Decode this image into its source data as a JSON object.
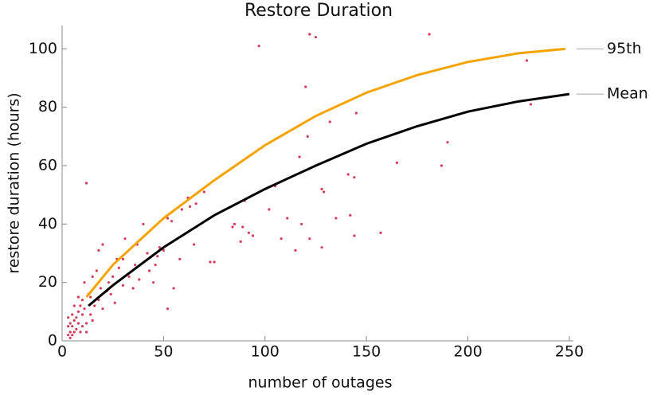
{
  "chart_data": {
    "type": "scatter",
    "title": "Restore Duration",
    "x_label": "number of outages",
    "y_label": "restore duration (hours)",
    "xlim": [
      0,
      252
    ],
    "ylim": [
      0,
      108
    ],
    "xticks": [
      0,
      50,
      100,
      150,
      200,
      250
    ],
    "yticks": [
      0,
      20,
      40,
      60,
      80,
      100
    ],
    "points": {
      "color": "#d63a5a",
      "x": [
        97,
        122,
        125,
        181,
        120,
        229,
        231,
        190,
        187,
        165,
        157,
        144,
        142,
        135,
        128,
        129,
        132,
        141,
        145,
        144,
        121,
        117,
        115,
        118,
        122,
        128,
        111,
        102,
        108,
        105,
        89,
        92,
        90,
        94,
        84,
        88,
        85,
        75,
        73,
        70,
        66,
        62,
        63,
        59,
        54,
        52,
        48,
        47,
        46,
        50,
        40,
        37,
        42,
        36,
        31,
        30,
        28,
        27,
        25,
        23,
        22,
        20,
        19,
        18,
        17,
        15,
        12,
        14,
        13,
        11,
        10,
        9,
        8,
        7,
        6,
        5,
        4,
        3,
        6,
        8,
        10,
        12,
        5,
        4,
        3,
        7,
        9,
        11,
        14,
        16,
        18,
        20,
        24,
        26,
        30,
        33,
        35,
        38,
        43,
        55,
        58,
        65,
        52,
        45,
        4,
        5,
        6,
        3,
        8,
        10,
        12,
        15
      ],
      "y": [
        101,
        105,
        104,
        105,
        87,
        96,
        81,
        68,
        60,
        61,
        37,
        36,
        43,
        42,
        52,
        51,
        75,
        57,
        78,
        56,
        70,
        63,
        31,
        40,
        35,
        32,
        42,
        45,
        35,
        53,
        39,
        37,
        48,
        36,
        39,
        34,
        40,
        27,
        27,
        51,
        47,
        49,
        46,
        45,
        41,
        42,
        32,
        29,
        26,
        31,
        40,
        33,
        30,
        26,
        35,
        28,
        25,
        28,
        22,
        20,
        17,
        33,
        18,
        31,
        24,
        22,
        54,
        15,
        16,
        20,
        14,
        12,
        10,
        8,
        7,
        5,
        3,
        2,
        12,
        15,
        9,
        6,
        9,
        6,
        5,
        4,
        3,
        11,
        9,
        12,
        14,
        11,
        16,
        13,
        19,
        22,
        18,
        21,
        24,
        18,
        28,
        33,
        11,
        20,
        1,
        2,
        3,
        8,
        6,
        5,
        3,
        7
      ]
    },
    "lines": [
      {
        "name": "95th",
        "color": "#f5a300",
        "x": [
          12,
          25,
          50,
          75,
          100,
          125,
          150,
          175,
          200,
          225,
          248
        ],
        "y": [
          15,
          26,
          42,
          55,
          67,
          77,
          85,
          91,
          95.5,
          98.5,
          100
        ]
      },
      {
        "name": "Mean",
        "color": "#000000",
        "x": [
          13,
          25,
          50,
          75,
          100,
          125,
          150,
          175,
          200,
          225,
          250
        ],
        "y": [
          12,
          19,
          32,
          43,
          52,
          60,
          67.5,
          73.5,
          78.5,
          82,
          84.5
        ]
      }
    ]
  }
}
